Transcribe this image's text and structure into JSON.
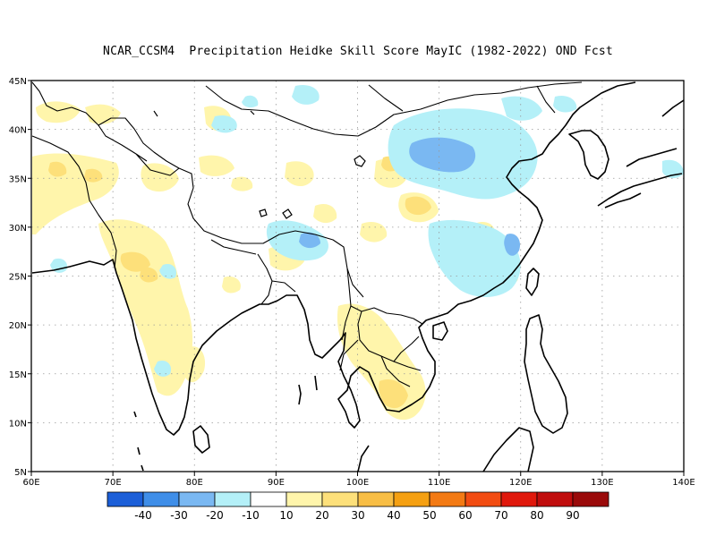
{
  "title": "NCAR_CCSM4  Precipitation Heidke Skill Score MayIC (1982-2022) OND Fcst",
  "map": {
    "lon_range": [
      60,
      140
    ],
    "lat_range": [
      5,
      45
    ],
    "lon_tick_labels": [
      "60E",
      "70E",
      "80E",
      "90E",
      "100E",
      "110E",
      "120E",
      "130E",
      "140E"
    ],
    "lat_tick_labels": [
      "5N",
      "10N",
      "15N",
      "20N",
      "25N",
      "30N",
      "35N",
      "40N",
      "45N"
    ],
    "grid": "dotted",
    "colorbar": {
      "colors": [
        "#1c5fd8",
        "#3f8ee8",
        "#7ab8f2",
        "#b4f0f8",
        "#ffffff",
        "#fff5ab",
        "#fde07a",
        "#f8be45",
        "#f5a012",
        "#f37a14",
        "#f24c12",
        "#e0180c",
        "#c00d0d",
        "#9a0a0a"
      ],
      "labels": [
        "-40",
        "-30",
        "-20",
        "-10",
        "10",
        "20",
        "30",
        "40",
        "50",
        "60",
        "70",
        "80",
        "90"
      ]
    }
  }
}
